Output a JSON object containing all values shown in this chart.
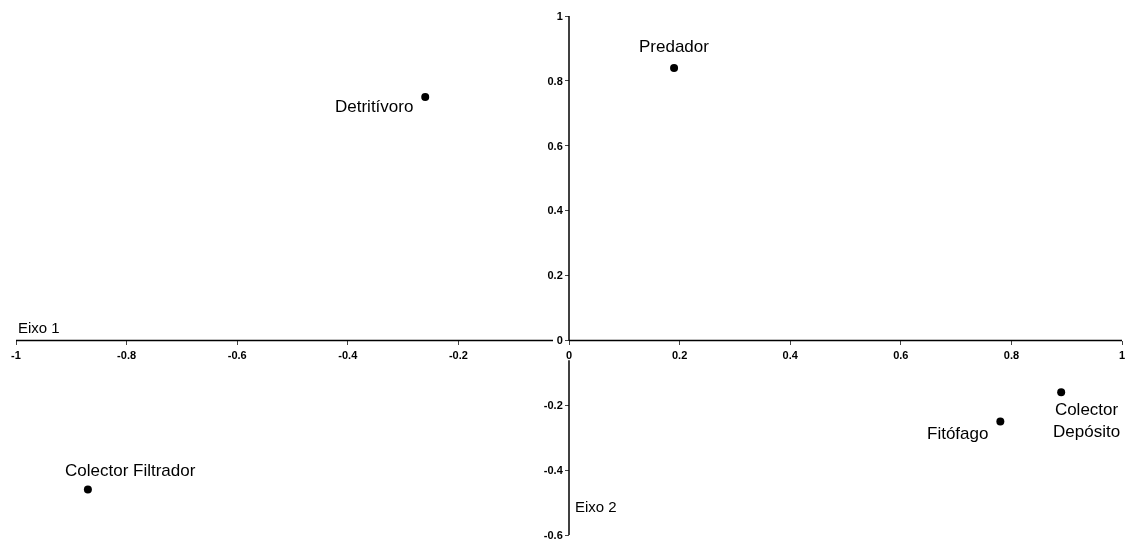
{
  "chart_data": {
    "type": "scatter",
    "xlabel": "Eixo 1",
    "ylabel": "Eixo 2",
    "x": [
      0.19,
      -0.26,
      -0.87,
      0.78,
      0.89
    ],
    "series": [
      {
        "color": "#000000",
        "values": [
          0.84,
          0.75,
          -0.46,
          -0.25,
          -0.16
        ]
      }
    ],
    "xlim": [
      -1,
      1
    ],
    "xticks": [
      -1,
      -0.8,
      -0.6,
      -0.4,
      -0.2,
      0,
      0.2,
      0.4,
      0.6,
      0.8,
      1
    ],
    "ylim": [
      -0.6,
      1
    ],
    "yticks": [
      -0.6,
      -0.4,
      -0.2,
      0,
      0.2,
      0.4,
      0.6,
      0.8,
      1
    ],
    "annotations": [
      {
        "text": "Predador",
        "x": 0.19,
        "y": 0.84
      },
      {
        "text": "Detritívoro",
        "x": -0.26,
        "y": 0.75
      },
      {
        "text": "Colector Filtrador",
        "x": -0.87,
        "y": -0.46
      },
      {
        "text": "Fitófago",
        "x": 0.78,
        "y": -0.25
      },
      {
        "text": "Colector\nDepósito",
        "x": 0.89,
        "y": -0.16
      }
    ],
    "marker": "circle"
  }
}
